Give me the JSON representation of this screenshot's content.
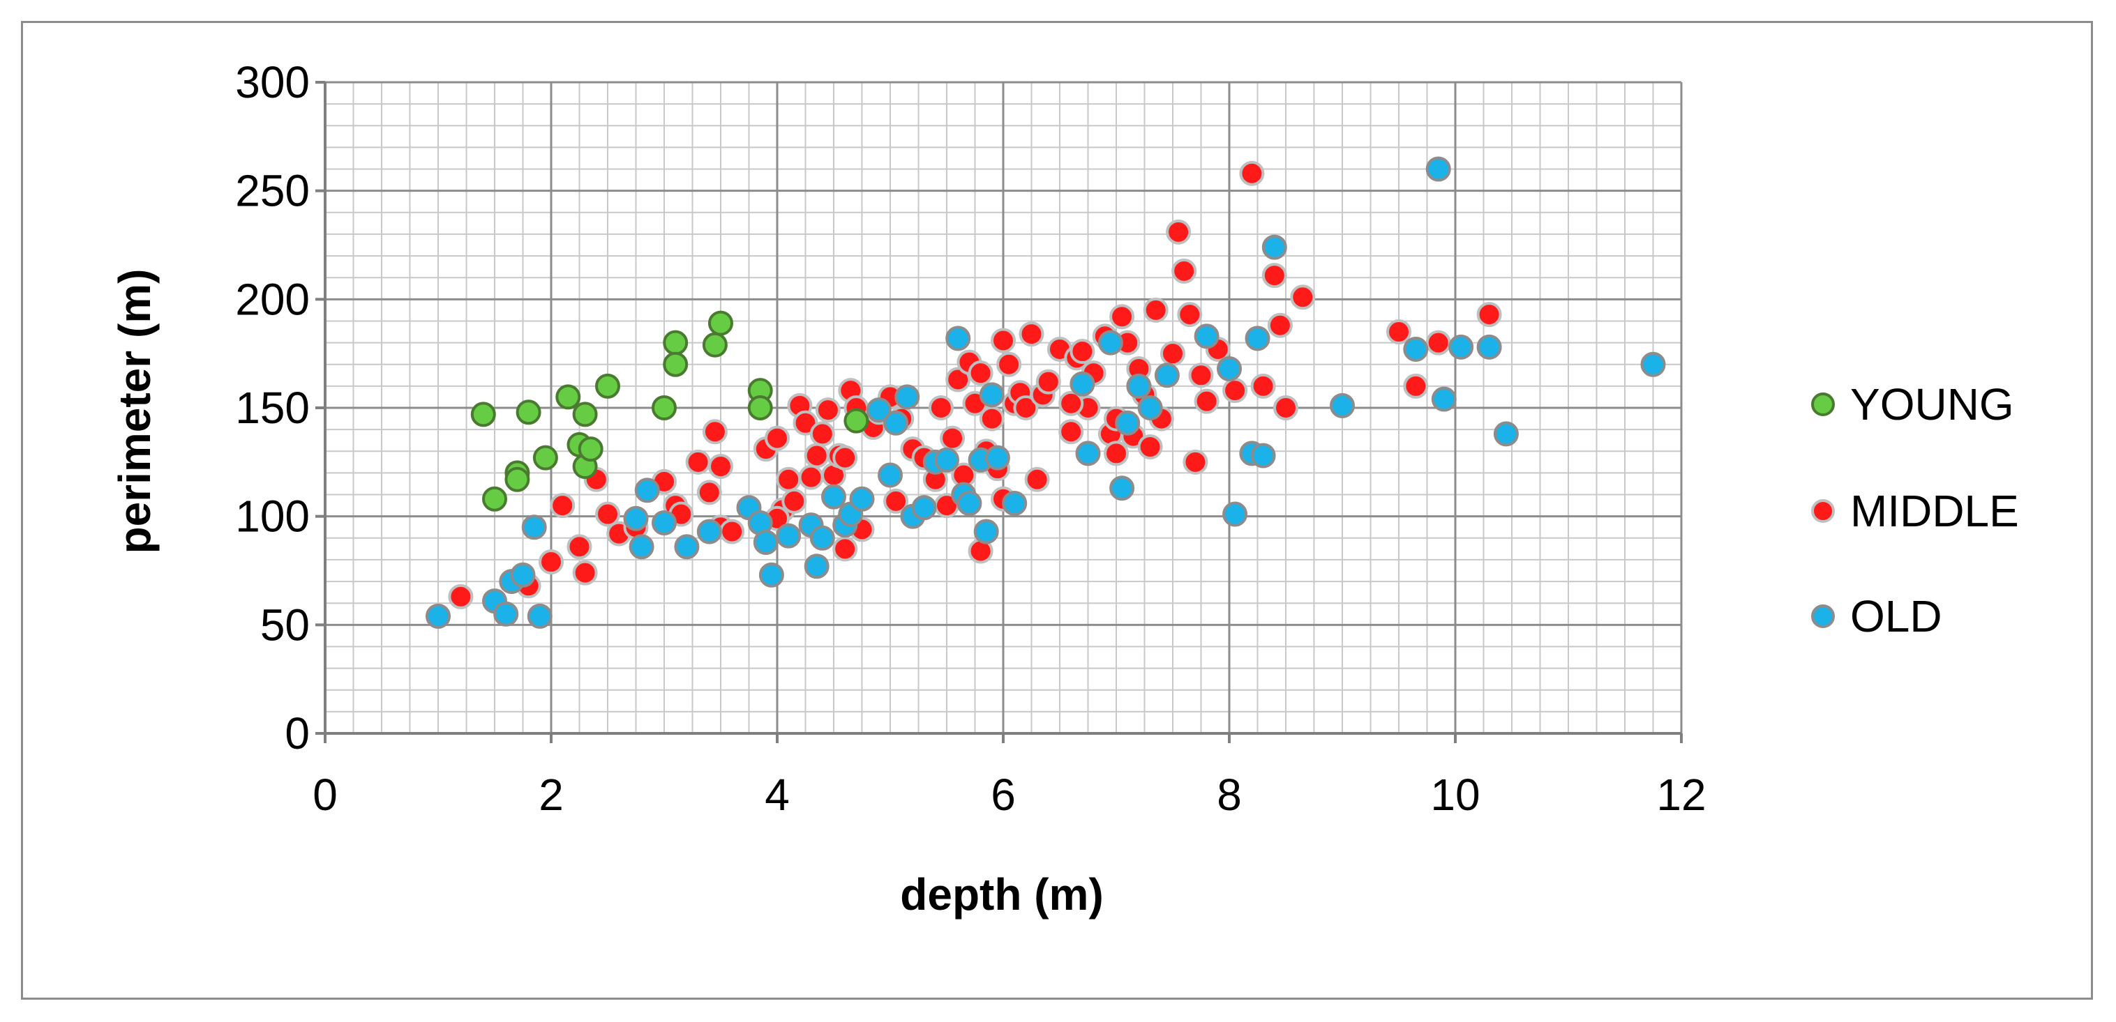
{
  "chart_data": {
    "type": "scatter",
    "title": "",
    "xlabel": "depth (m)",
    "ylabel": "perimeter (m)",
    "xlim": [
      0,
      12
    ],
    "ylim": [
      0,
      300
    ],
    "x_ticks": [
      "0",
      "2",
      "4",
      "6",
      "8",
      "10",
      "12"
    ],
    "y_ticks": [
      "0",
      "50",
      "100",
      "150",
      "200",
      "250",
      "300"
    ],
    "grid": true,
    "legend_position": "right",
    "series": [
      {
        "name": "YOUNG",
        "color": "#66cc44",
        "edge_color": "#4a7a30",
        "x": [
          1.4,
          1.5,
          1.7,
          1.7,
          1.8,
          1.95,
          2.15,
          2.25,
          2.3,
          2.3,
          2.35,
          2.5,
          3.0,
          3.1,
          3.1,
          3.45,
          3.5,
          3.85,
          3.85,
          4.7
        ],
        "y": [
          147,
          108,
          120,
          117,
          148,
          127,
          155,
          133,
          147,
          123,
          131,
          160,
          150,
          180,
          170,
          179,
          189,
          158,
          150,
          144
        ]
      },
      {
        "name": "MIDDLE",
        "color": "#ff1a1a",
        "edge_color": "#bfbfbf",
        "x": [
          1.2,
          1.8,
          2.0,
          2.1,
          2.25,
          2.3,
          2.4,
          2.5,
          2.6,
          2.75,
          3.0,
          3.1,
          3.15,
          3.3,
          3.4,
          3.45,
          3.5,
          3.5,
          3.6,
          3.9,
          4.0,
          4.05,
          4.1,
          4.15,
          4.2,
          4.25,
          4.3,
          4.35,
          4.4,
          4.45,
          4.5,
          4.55,
          4.6,
          4.65,
          4.7,
          4.75,
          4.85,
          4.9,
          5.0,
          5.05,
          5.1,
          5.2,
          5.3,
          5.4,
          5.45,
          5.5,
          5.55,
          5.6,
          5.65,
          5.7,
          5.75,
          5.8,
          5.85,
          5.9,
          5.95,
          6.0,
          6.05,
          6.1,
          6.15,
          6.2,
          6.25,
          6.3,
          6.35,
          6.4,
          6.5,
          6.6,
          6.65,
          6.7,
          6.75,
          6.8,
          6.9,
          6.95,
          7.0,
          7.05,
          7.1,
          7.15,
          7.2,
          7.25,
          7.3,
          7.35,
          7.4,
          7.5,
          7.55,
          7.6,
          7.65,
          7.7,
          7.75,
          7.8,
          7.9,
          8.05,
          8.2,
          8.3,
          8.4,
          8.45,
          8.5,
          8.65,
          9.5,
          9.65,
          9.85,
          10.3,
          5.8,
          6.0,
          6.6,
          7.0,
          4.0,
          4.6
        ],
        "y": [
          63,
          68,
          79,
          105,
          86,
          74,
          117,
          101,
          92,
          95,
          116,
          105,
          101,
          125,
          111,
          139,
          123,
          95,
          93,
          131,
          136,
          103,
          117,
          107,
          151,
          143,
          118,
          128,
          138,
          149,
          119,
          128,
          127,
          158,
          150,
          94,
          141,
          148,
          155,
          107,
          145,
          131,
          127,
          117,
          150,
          105,
          136,
          163,
          119,
          171,
          152,
          166,
          130,
          145,
          122,
          181,
          170,
          152,
          157,
          150,
          184,
          117,
          156,
          162,
          177,
          139,
          173,
          176,
          150,
          166,
          183,
          138,
          145,
          192,
          180,
          137,
          168,
          156,
          132,
          195,
          145,
          175,
          231,
          213,
          193,
          125,
          165,
          153,
          177,
          158,
          258,
          160,
          211,
          188,
          150,
          201,
          185,
          160,
          180,
          193,
          84,
          108,
          152,
          129,
          99,
          85
        ]
      },
      {
        "name": "OLD",
        "color": "#1ab2e8",
        "edge_color": "#8c8c8c",
        "x": [
          1.0,
          1.5,
          1.6,
          1.65,
          1.75,
          1.85,
          1.9,
          2.75,
          2.8,
          2.85,
          3.0,
          3.2,
          3.4,
          3.75,
          3.85,
          3.9,
          3.95,
          4.1,
          4.3,
          4.35,
          4.4,
          4.5,
          4.6,
          4.65,
          4.75,
          4.9,
          5.0,
          5.05,
          5.15,
          5.2,
          5.3,
          5.4,
          5.5,
          5.6,
          5.65,
          5.7,
          5.8,
          5.85,
          5.9,
          5.95,
          6.1,
          6.7,
          6.75,
          6.95,
          7.05,
          7.1,
          7.2,
          7.3,
          7.45,
          7.8,
          8.0,
          8.05,
          8.2,
          8.3,
          8.4,
          9.0,
          9.65,
          9.85,
          9.9,
          10.05,
          10.3,
          10.45,
          11.75,
          8.25
        ],
        "y": [
          54,
          61,
          55,
          70,
          73,
          95,
          54,
          99,
          86,
          112,
          97,
          86,
          93,
          104,
          97,
          88,
          73,
          91,
          96,
          77,
          90,
          109,
          96,
          101,
          108,
          149,
          119,
          143,
          155,
          100,
          104,
          125,
          126,
          182,
          110,
          106,
          126,
          93,
          156,
          127,
          106,
          161,
          129,
          180,
          113,
          143,
          160,
          150,
          165,
          183,
          168,
          101,
          129,
          128,
          224,
          151,
          177,
          260,
          154,
          178,
          178,
          138,
          170,
          182
        ]
      }
    ]
  }
}
